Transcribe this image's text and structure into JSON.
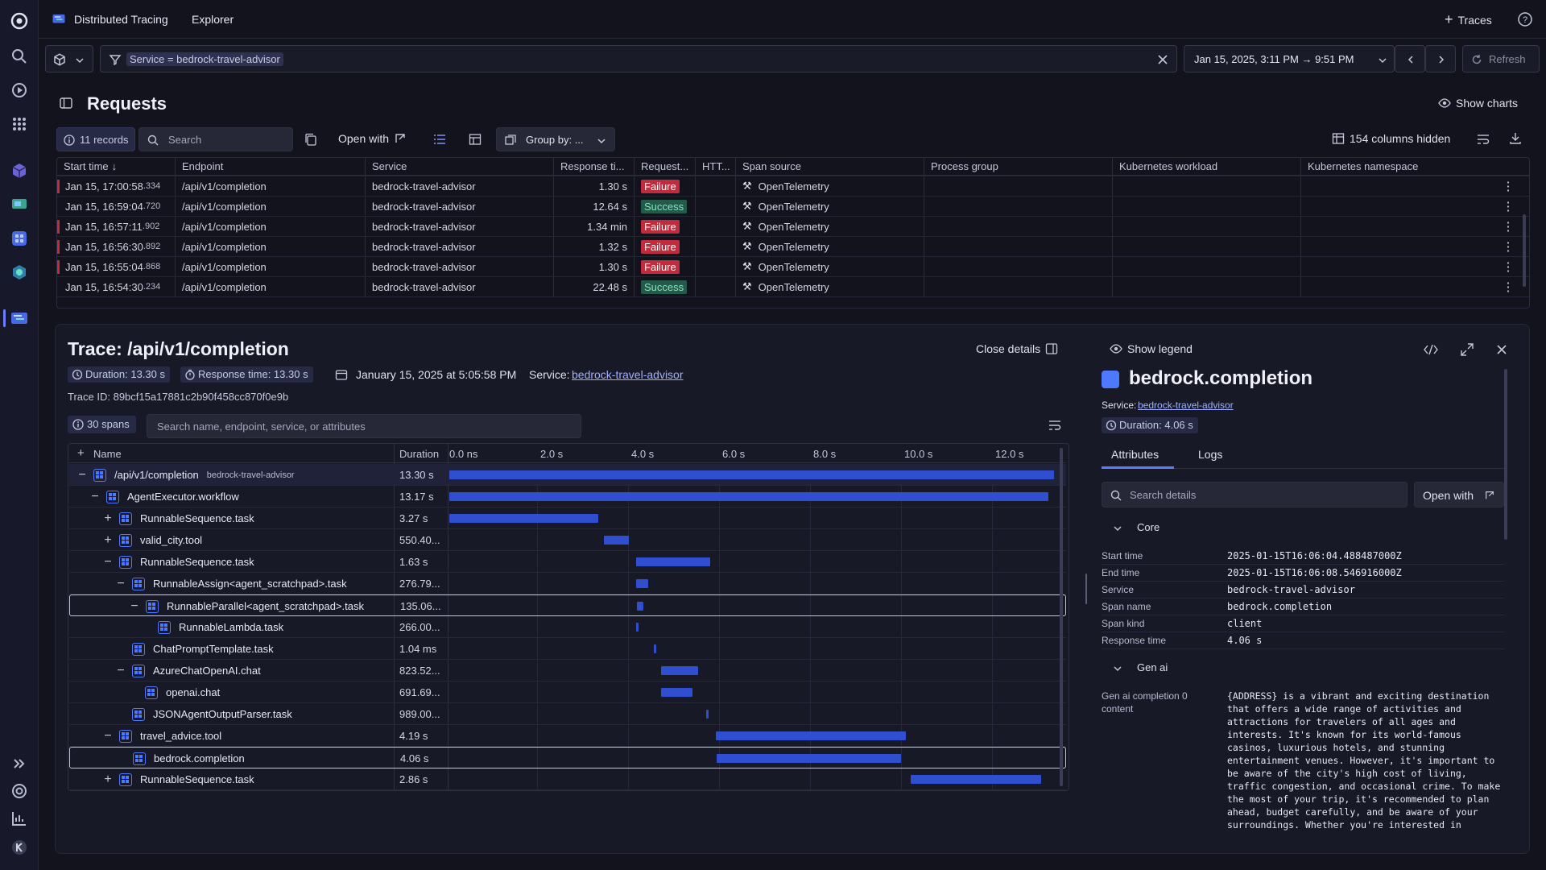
{
  "app": {
    "title": "Distributed Tracing",
    "explorer": "Explorer",
    "traces_button": "Traces"
  },
  "filter": {
    "query": "Service = bedrock-travel-advisor",
    "time_range": "Jan 15, 2025, 3:11 PM → 9:51 PM",
    "refresh": "Refresh"
  },
  "requests": {
    "title": "Requests",
    "show_charts": "Show charts",
    "records": "11 records",
    "search_placeholder": "Search",
    "open_with": "Open with",
    "group_by": "Group by: ...",
    "columns_hidden": "154 columns hidden",
    "columns": [
      "Start time",
      "Endpoint",
      "Service",
      "Response ti...",
      "Request...",
      "HTT...",
      "Span source",
      "Process group",
      "Kubernetes workload",
      "Kubernetes namespace"
    ],
    "rows": [
      {
        "time": "Jan 15, 17:00:58",
        "ms": ".334",
        "endpoint": "/api/v1/completion",
        "service": "bedrock-travel-advisor",
        "response": "1.30 s",
        "status": "Failure",
        "source": "OpenTelemetry"
      },
      {
        "time": "Jan 15, 16:59:04",
        "ms": ".720",
        "endpoint": "/api/v1/completion",
        "service": "bedrock-travel-advisor",
        "response": "12.64 s",
        "status": "Success",
        "source": "OpenTelemetry"
      },
      {
        "time": "Jan 15, 16:57:11",
        "ms": ".902",
        "endpoint": "/api/v1/completion",
        "service": "bedrock-travel-advisor",
        "response": "1.34 min",
        "status": "Failure",
        "source": "OpenTelemetry"
      },
      {
        "time": "Jan 15, 16:56:30",
        "ms": ".892",
        "endpoint": "/api/v1/completion",
        "service": "bedrock-travel-advisor",
        "response": "1.32 s",
        "status": "Failure",
        "source": "OpenTelemetry"
      },
      {
        "time": "Jan 15, 16:55:04",
        "ms": ".868",
        "endpoint": "/api/v1/completion",
        "service": "bedrock-travel-advisor",
        "response": "1.30 s",
        "status": "Failure",
        "source": "OpenTelemetry"
      },
      {
        "time": "Jan 15, 16:54:30",
        "ms": ".234",
        "endpoint": "/api/v1/completion",
        "service": "bedrock-travel-advisor",
        "response": "22.48 s",
        "status": "Success",
        "source": "OpenTelemetry"
      }
    ]
  },
  "trace": {
    "title": "Trace: /api/v1/completion",
    "close_details": "Close details",
    "duration": "Duration: 13.30 s",
    "response_time": "Response time: 13.30 s",
    "date": "January 15, 2025 at 5:05:58 PM",
    "service_label": "Service:",
    "service": "bedrock-travel-advisor",
    "trace_id": "Trace ID: 89bcf15a17881c2b90f458cc870f0e9b",
    "spans": "30 spans",
    "search_placeholder": "Search name, endpoint, service, or attributes",
    "col_name": "Name",
    "col_duration": "Duration",
    "ticks": [
      "0.0 ns",
      "2.0 s",
      "4.0 s",
      "6.0 s",
      "8.0 s",
      "10.0 s",
      "12.0 s"
    ],
    "span_rows": [
      {
        "name": "/api/v1/completion",
        "sub": "bedrock-travel-advisor",
        "duration": "13.30 s",
        "start": 0,
        "dur": 13.3,
        "toggle": "−",
        "depth": 0
      },
      {
        "name": "AgentExecutor.workflow",
        "duration": "13.17 s",
        "start": 0,
        "dur": 13.17,
        "toggle": "−",
        "depth": 1
      },
      {
        "name": "RunnableSequence.task",
        "duration": "3.27 s",
        "start": 0,
        "dur": 3.27,
        "toggle": "+",
        "depth": 2
      },
      {
        "name": "valid_city.tool",
        "duration": "550.40...",
        "start": 3.4,
        "dur": 0.55,
        "toggle": "+",
        "depth": 2
      },
      {
        "name": "RunnableSequence.task",
        "duration": "1.63 s",
        "start": 4.1,
        "dur": 1.63,
        "toggle": "−",
        "depth": 2
      },
      {
        "name": "RunnableAssign<agent_scratchpad>.task",
        "duration": "276.79...",
        "start": 4.1,
        "dur": 0.28,
        "toggle": "−",
        "depth": 3
      },
      {
        "name": "RunnableParallel<agent_scratchpad>.task",
        "duration": "135.06...",
        "start": 4.1,
        "dur": 0.14,
        "toggle": "−",
        "depth": 4,
        "selected": true
      },
      {
        "name": "RunnableLambda.task",
        "duration": "266.00...",
        "start": 4.1,
        "dur": 0.05,
        "toggle": "",
        "depth": 5
      },
      {
        "name": "ChatPromptTemplate.task",
        "duration": "1.04 ms",
        "start": 4.5,
        "dur": 0.04,
        "toggle": "",
        "depth": 3
      },
      {
        "name": "AzureChatOpenAI.chat",
        "duration": "823.52...",
        "start": 4.65,
        "dur": 0.82,
        "toggle": "−",
        "depth": 3
      },
      {
        "name": "openai.chat",
        "duration": "691.69...",
        "start": 4.65,
        "dur": 0.69,
        "toggle": "",
        "depth": 4
      },
      {
        "name": "JSONAgentOutputParser.task",
        "duration": "989.00...",
        "start": 5.65,
        "dur": 0.04,
        "toggle": "",
        "depth": 3
      },
      {
        "name": "travel_advice.tool",
        "duration": "4.19 s",
        "start": 5.85,
        "dur": 4.19,
        "toggle": "−",
        "depth": 2
      },
      {
        "name": "bedrock.completion",
        "duration": "4.06 s",
        "start": 5.85,
        "dur": 4.06,
        "toggle": "",
        "depth": 3,
        "selected": true
      },
      {
        "name": "RunnableSequence.task",
        "duration": "2.86 s",
        "start": 10.15,
        "dur": 2.86,
        "toggle": "+",
        "depth": 2
      }
    ]
  },
  "details": {
    "show_legend": "Show legend",
    "title": "bedrock.completion",
    "service_label": "Service:",
    "service": "bedrock-travel-advisor",
    "duration": "Duration: 4.06 s",
    "tabs": [
      "Attributes",
      "Logs"
    ],
    "search_placeholder": "Search details",
    "open_with": "Open with",
    "core": "Core",
    "core_rows": [
      {
        "k": "Start time",
        "v": "2025-01-15T16:06:04.488487000Z"
      },
      {
        "k": "End time",
        "v": "2025-01-15T16:06:08.546916000Z"
      },
      {
        "k": "Service",
        "v": "bedrock-travel-advisor"
      },
      {
        "k": "Span name",
        "v": "bedrock.completion"
      },
      {
        "k": "Span kind",
        "v": "client"
      },
      {
        "k": "Response time",
        "v": "4.06 s"
      }
    ],
    "gen_ai": "Gen ai",
    "gen_label": "Gen ai completion 0 content",
    "gen_value": "{ADDRESS} is a vibrant and exciting destination that offers a wide range of activities and attractions for travelers of all ages and interests. It's known for its world-famous casinos, luxurious hotels, and stunning entertainment venues. However, it's important to be aware of the city's high cost of living, traffic congestion, and occasional crime. To make the most of your trip, it's recommended to plan ahead, budget carefully, and be aware of your surroundings. Whether you're interested in"
  },
  "colors": {
    "accent": "#2f4fd0",
    "failure": "#c02c3c",
    "success": "#245a4a",
    "background": "#12131d"
  }
}
